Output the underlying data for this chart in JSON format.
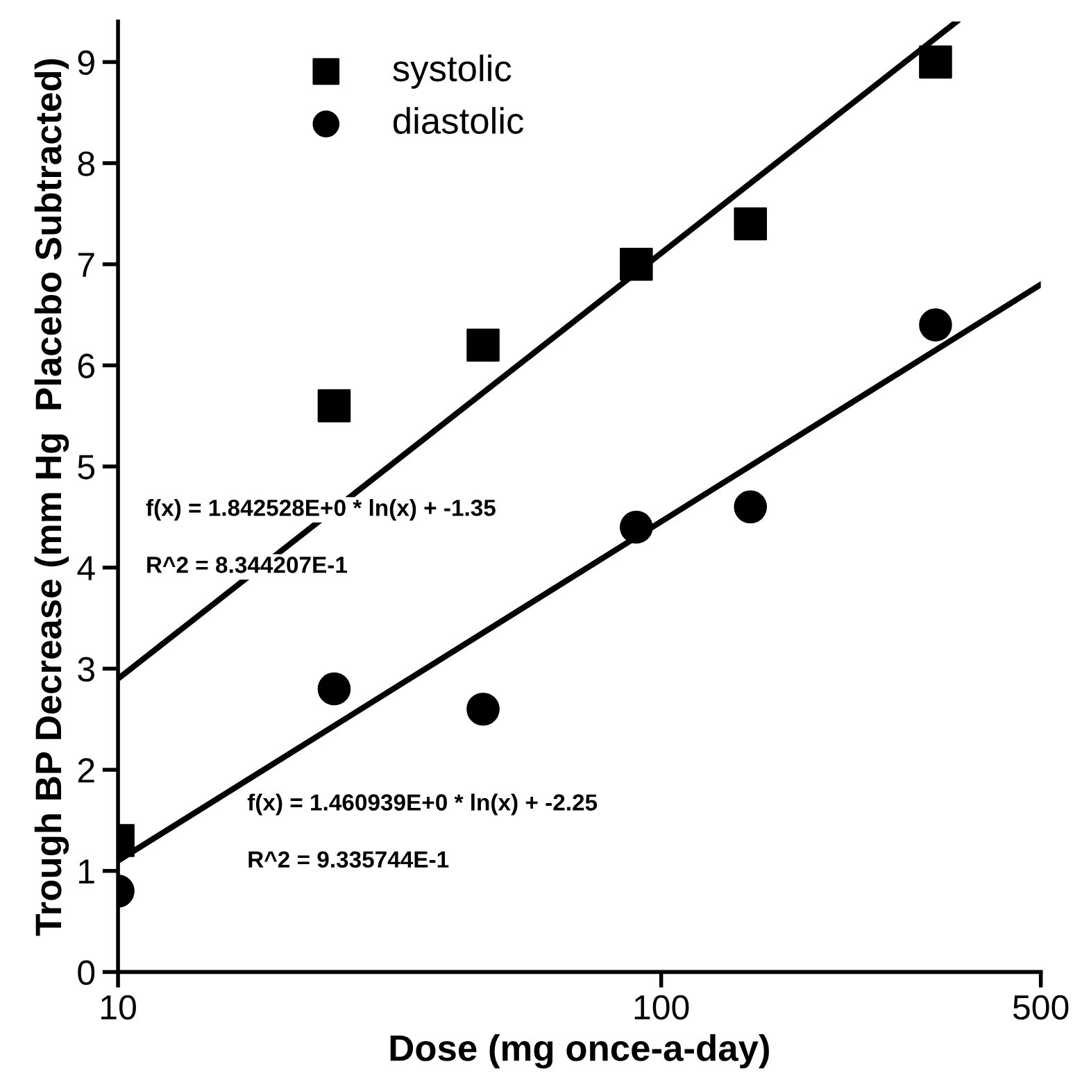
{
  "chart_data": {
    "type": "scatter",
    "xlabel": "Dose (mg once-a-day)",
    "ylabel": "Trough BP Decrease (mm Hg  Placebo Subtracted)",
    "log": "x",
    "xlim": [
      10,
      500
    ],
    "xticks": [
      10,
      100,
      500
    ],
    "ylim": [
      0,
      9.4
    ],
    "yticks": [
      0,
      1,
      2,
      3,
      4,
      5,
      6,
      7,
      8,
      9
    ],
    "grid": false,
    "legend": "top left",
    "series": [
      {
        "name": "systolic",
        "color": "#000000",
        "marker": "square",
        "x": [
          10,
          25,
          47,
          90,
          146,
          320
        ],
        "values": [
          1.3,
          5.6,
          6.2,
          7.0,
          7.4,
          9.0
        ]
      },
      {
        "name": "diastolic",
        "color": "#000000",
        "marker": "circle",
        "x": [
          10,
          25,
          47,
          90,
          146,
          320
        ],
        "values": [
          0.8,
          2.8,
          2.6,
          4.4,
          4.6,
          6.4
        ]
      },
      {
        "type": "line",
        "color": "#000000",
        "marker": "none",
        "line_style": "solid",
        "x": [
          10,
          350
        ],
        "values": [
          2.9,
          9.4
        ]
      },
      {
        "type": "line",
        "color": "#000000",
        "marker": "none",
        "line_style": "solid",
        "x": [
          10,
          500
        ],
        "values": [
          1.1,
          6.8
        ]
      }
    ],
    "annotations": [
      "f(x) = 1.842528E+0 * ln(x) + -1.35",
      "R^2 = 8.344207E-1",
      "f(x) = 1.460939E+0 * ln(x) + -2.25",
      "R^2 = 9.335744E-1"
    ]
  }
}
